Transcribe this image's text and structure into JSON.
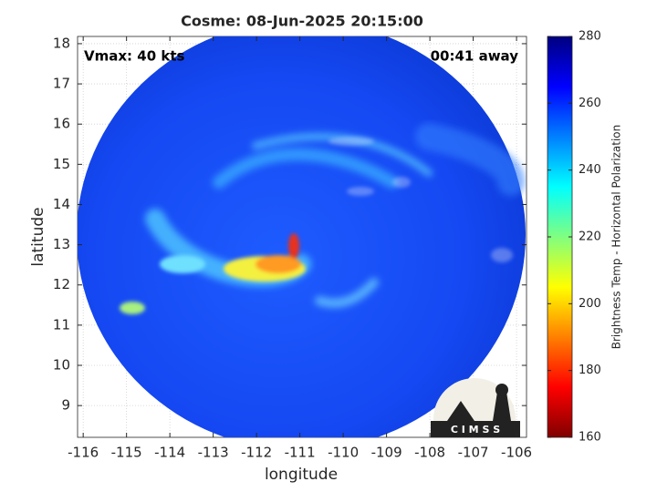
{
  "chart_data": {
    "type": "heatmap",
    "title": "Cosme: 08-Jun-2025 20:15:00",
    "xlabel": "longitude",
    "ylabel": "latitude",
    "annotations": [
      "Vmax: 40 kts",
      "00:41 away"
    ],
    "xlim": [
      -116.13,
      -105.77
    ],
    "xticks": [
      -116,
      -115,
      -114,
      -113,
      -112,
      -111,
      -110,
      -109,
      -108,
      -107,
      -106
    ],
    "ylim": [
      8.21,
      18.18
    ],
    "yticks": [
      9,
      10,
      11,
      12,
      13,
      14,
      15,
      16,
      17,
      18
    ],
    "grid": true,
    "colorbar_label": "Brightness Temp - Horizontal Polarization",
    "clim": [
      160,
      280
    ],
    "cticks": [
      160,
      180,
      200,
      220,
      240,
      260,
      280
    ],
    "colormap": [
      "#800000",
      "#ff0000",
      "#ff8000",
      "#ffff00",
      "#80ff80",
      "#00ffff",
      "#0080ff",
      "#0000ff",
      "#000080"
    ],
    "logo_text": "C I M S S"
  }
}
